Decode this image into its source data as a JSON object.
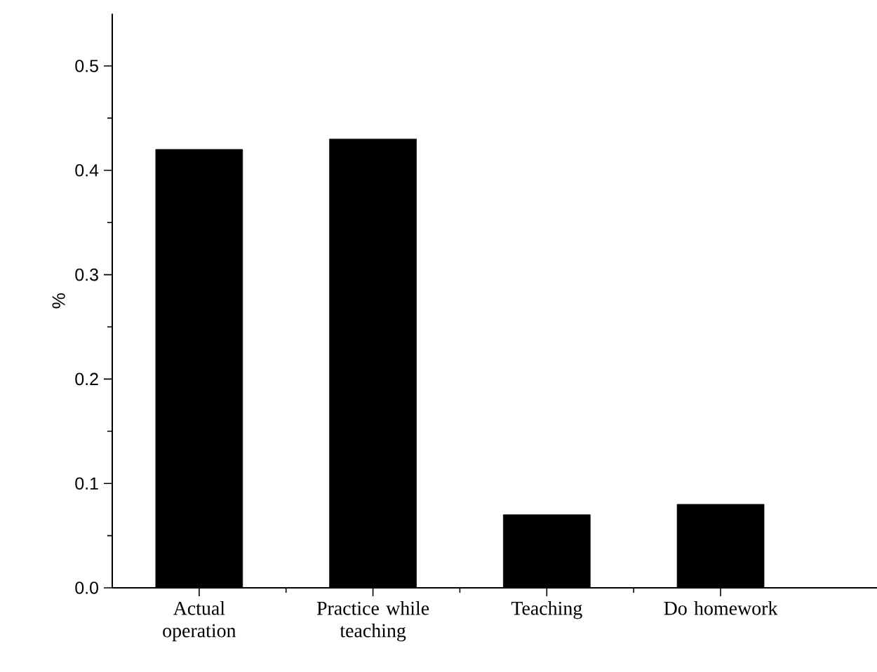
{
  "chart_data": {
    "type": "bar",
    "ylabel": "%",
    "categories": [
      "Actual operation",
      "Practice while teaching",
      "Teaching",
      "Do homework"
    ],
    "values": [
      0.42,
      0.43,
      0.07,
      0.08
    ],
    "color": "#000000",
    "ylim": [
      0,
      0.55
    ],
    "yticks": [
      {
        "value": 0,
        "label": "0.0"
      },
      {
        "value": 0.1,
        "label": "0.1"
      },
      {
        "value": 0.2,
        "label": "0.2"
      },
      {
        "value": 0.3,
        "label": "0.3"
      },
      {
        "value": 0.4,
        "label": "0.4"
      },
      {
        "value": 0.5,
        "label": "0.5"
      }
    ]
  }
}
